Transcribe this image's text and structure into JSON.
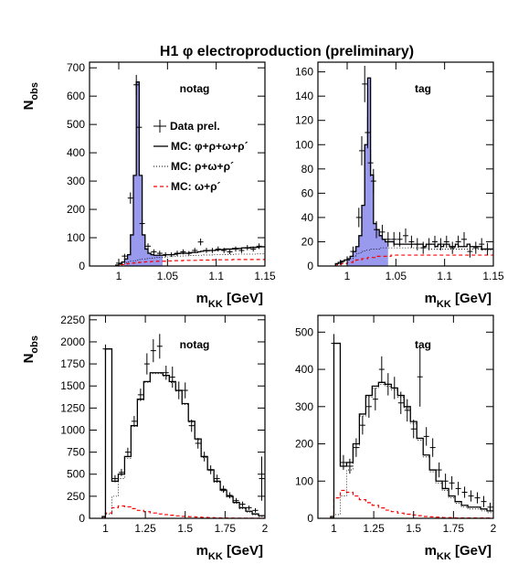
{
  "figure": {
    "title": "H1 φ electroproduction (preliminary)",
    "legend": [
      {
        "label": "Data prel.",
        "style": "data"
      },
      {
        "label": "MC: φ+ρ+ω+ρ´",
        "style": "solid"
      },
      {
        "label": "MC: ρ+ω+ρ´",
        "style": "dotted"
      },
      {
        "label": "MC: ω+ρ´",
        "style": "dashed"
      }
    ],
    "colors": {
      "fill": "#9999ee",
      "dashed": "#ff0000",
      "line": "#000000"
    }
  },
  "chart_data": [
    {
      "type": "histogram",
      "panel_label": "notag",
      "xlabel_main": "m",
      "xlabel_sub": "KK",
      "xlabel_unit": " [GeV]",
      "ylabel_main": "N",
      "ylabel_sub": "obs",
      "xlim": [
        0.97,
        1.15
      ],
      "ylim": [
        0,
        720
      ],
      "xticks": [
        1,
        1.05,
        1.1,
        1.15
      ],
      "xtick_labels": [
        "1",
        "1.05",
        "1.1",
        "1.15"
      ],
      "yticks": [
        0,
        100,
        200,
        300,
        400,
        500,
        600,
        700
      ],
      "ytick_labels": [
        "0",
        "100",
        "200",
        "300",
        "400",
        "500",
        "600",
        "700"
      ],
      "bin_edges": [
        0.997,
        1.0,
        1.003,
        1.006,
        1.009,
        1.012,
        1.015,
        1.018,
        1.021,
        1.024,
        1.027,
        1.03,
        1.033,
        1.036,
        1.039,
        1.042,
        1.045,
        1.048,
        1.051,
        1.054,
        1.057,
        1.06,
        1.063,
        1.066,
        1.069,
        1.072,
        1.075,
        1.078,
        1.081,
        1.084,
        1.087,
        1.09,
        1.093,
        1.096,
        1.099,
        1.102,
        1.105,
        1.108,
        1.111,
        1.114,
        1.117,
        1.12,
        1.123,
        1.126,
        1.129,
        1.132,
        1.135,
        1.138,
        1.141,
        1.144,
        1.147,
        1.15
      ],
      "mc_total": [
        3,
        8,
        14,
        25,
        40,
        110,
        320,
        650,
        320,
        110,
        60,
        45,
        40,
        38,
        38,
        38,
        38,
        40,
        40,
        40,
        42,
        44,
        45,
        45,
        45,
        47,
        48,
        48,
        50,
        52,
        54,
        54,
        55,
        55,
        56,
        58,
        58,
        60,
        60,
        60,
        62,
        62,
        62,
        64,
        64,
        64,
        66,
        66,
        66,
        68,
        68
      ],
      "mc_bkg": [
        2,
        5,
        8,
        12,
        15,
        17,
        19,
        21,
        23,
        25,
        26,
        27,
        28,
        29,
        30,
        31,
        31,
        32,
        33,
        33,
        34,
        35,
        35,
        36,
        36,
        37,
        37,
        38,
        38,
        38,
        39,
        39,
        39,
        40,
        40,
        40,
        40,
        41,
        41,
        41,
        41,
        42,
        42,
        42,
        42,
        42,
        42,
        42,
        43,
        43,
        43
      ],
      "mc_dashed": [
        1,
        3,
        5,
        7,
        9,
        10,
        11,
        12,
        13,
        14,
        15,
        15,
        16,
        16,
        17,
        17,
        17,
        18,
        18,
        18,
        19,
        19,
        19,
        20,
        20,
        20,
        20,
        20,
        21,
        21,
        21,
        21,
        21,
        22,
        22,
        22,
        22,
        22,
        22,
        22,
        23,
        23,
        23,
        23,
        23,
        23,
        23,
        23,
        23,
        23,
        23
      ],
      "fill_range": [
        1.006,
        1.045
      ],
      "data_x": [
        1.0,
        1.006,
        1.012,
        1.018,
        1.021,
        1.024,
        1.03,
        1.036,
        1.042,
        1.048,
        1.054,
        1.06,
        1.066,
        1.072,
        1.078,
        1.084,
        1.09,
        1.096,
        1.102,
        1.108,
        1.114,
        1.12,
        1.126,
        1.132,
        1.138,
        1.144
      ],
      "data_y": [
        10,
        35,
        240,
        640,
        490,
        150,
        70,
        50,
        45,
        40,
        40,
        45,
        50,
        45,
        55,
        85,
        55,
        55,
        60,
        55,
        50,
        60,
        55,
        65,
        60,
        70
      ],
      "data_err": [
        5,
        8,
        20,
        35,
        30,
        15,
        10,
        9,
        9,
        8,
        8,
        9,
        9,
        8,
        9,
        12,
        9,
        9,
        9,
        9,
        8,
        9,
        9,
        9,
        9,
        10
      ]
    },
    {
      "type": "histogram",
      "panel_label": "tag",
      "xlabel_main": "m",
      "xlabel_sub": "KK",
      "xlabel_unit": " [GeV]",
      "ylabel_main": "",
      "ylabel_sub": "",
      "xlim": [
        0.97,
        1.15
      ],
      "ylim": [
        0,
        168
      ],
      "xticks": [
        1,
        1.05,
        1.1,
        1.15
      ],
      "xtick_labels": [
        "1",
        "1.05",
        "1.1",
        "1.15"
      ],
      "yticks": [
        0,
        20,
        40,
        60,
        80,
        100,
        120,
        140,
        160
      ],
      "ytick_labels": [
        "0",
        "20",
        "40",
        "60",
        "80",
        "100",
        "120",
        "140",
        "160"
      ],
      "bin_edges": [
        0.988,
        0.991,
        0.994,
        0.997,
        1.0,
        1.003,
        1.006,
        1.009,
        1.012,
        1.015,
        1.018,
        1.021,
        1.024,
        1.027,
        1.03,
        1.033,
        1.036,
        1.039,
        1.042,
        1.045,
        1.048,
        1.051,
        1.054,
        1.057,
        1.06,
        1.063,
        1.066,
        1.069,
        1.072,
        1.075,
        1.078,
        1.081,
        1.084,
        1.087,
        1.09,
        1.093,
        1.096,
        1.099,
        1.102,
        1.105,
        1.108,
        1.111,
        1.114,
        1.117,
        1.12,
        1.123,
        1.126,
        1.129,
        1.132,
        1.135,
        1.138,
        1.141,
        1.144,
        1.147,
        1.15
      ],
      "mc_total": [
        2,
        3,
        4,
        5,
        6,
        8,
        12,
        16,
        25,
        50,
        100,
        155,
        75,
        35,
        30,
        25,
        22,
        20,
        20,
        20,
        18,
        18,
        18,
        18,
        18,
        18,
        18,
        18,
        18,
        18,
        16,
        18,
        18,
        18,
        16,
        18,
        16,
        18,
        18,
        16,
        16,
        18,
        16,
        16,
        16,
        18,
        16,
        16,
        16,
        16,
        14,
        14,
        14,
        14
      ],
      "mc_bkg": [
        1,
        2,
        3,
        4,
        5,
        6,
        8,
        10,
        11,
        12,
        13,
        13,
        14,
        14,
        14,
        15,
        15,
        15,
        15,
        15,
        15,
        15,
        15,
        15,
        15,
        15,
        15,
        15,
        15,
        15,
        15,
        15,
        14,
        14,
        14,
        14,
        14,
        14,
        14,
        14,
        14,
        14,
        14,
        14,
        14,
        14,
        14,
        14,
        14,
        14,
        13,
        13,
        13,
        13
      ],
      "mc_dashed": [
        1,
        1,
        2,
        2,
        3,
        3,
        4,
        5,
        5,
        6,
        6,
        7,
        7,
        7,
        8,
        8,
        8,
        8,
        8,
        9,
        9,
        9,
        9,
        9,
        9,
        9,
        9,
        9,
        9,
        9,
        9,
        9,
        9,
        9,
        9,
        9,
        9,
        9,
        9,
        9,
        9,
        9,
        9,
        9,
        9,
        9,
        9,
        9,
        9,
        9,
        9,
        9,
        9,
        9
      ],
      "fill_range": [
        1.0,
        1.042
      ],
      "data_x": [
        0.993,
        1.0,
        1.006,
        1.012,
        1.015,
        1.018,
        1.021,
        1.024,
        1.027,
        1.03,
        1.036,
        1.042,
        1.048,
        1.054,
        1.06,
        1.066,
        1.072,
        1.078,
        1.084,
        1.09,
        1.096,
        1.102,
        1.108,
        1.114,
        1.12,
        1.126,
        1.132,
        1.138,
        1.144
      ],
      "data_y": [
        3,
        5,
        12,
        40,
        95,
        150,
        110,
        85,
        70,
        30,
        28,
        22,
        22,
        22,
        25,
        20,
        18,
        15,
        18,
        20,
        18,
        20,
        15,
        20,
        22,
        12,
        15,
        18,
        14
      ],
      "data_err": [
        2,
        3,
        4,
        8,
        12,
        15,
        13,
        11,
        10,
        7,
        6,
        6,
        6,
        6,
        6,
        5,
        5,
        5,
        5,
        5,
        5,
        5,
        5,
        5,
        6,
        5,
        5,
        5,
        5
      ]
    },
    {
      "type": "histogram",
      "panel_label": "notag",
      "xlabel_main": "m",
      "xlabel_sub": "KK",
      "xlabel_unit": " [GeV]",
      "ylabel_main": "N",
      "ylabel_sub": "obs",
      "xlim": [
        0.9,
        2
      ],
      "ylim": [
        0,
        2300
      ],
      "xticks": [
        1,
        1.25,
        1.5,
        1.75,
        2
      ],
      "xtick_labels": [
        "1",
        "1.25",
        "1.5",
        "1.75",
        "2"
      ],
      "yticks": [
        0,
        250,
        500,
        750,
        1000,
        1250,
        1500,
        1750,
        2000,
        2250
      ],
      "ytick_labels": [
        "0",
        "250",
        "500",
        "750",
        "1000",
        "1250",
        "1500",
        "1750",
        "2000",
        "2250"
      ],
      "bin_edges": [
        0.98,
        1.0,
        1.04,
        1.08,
        1.12,
        1.16,
        1.2,
        1.24,
        1.28,
        1.32,
        1.36,
        1.4,
        1.44,
        1.48,
        1.52,
        1.56,
        1.6,
        1.64,
        1.68,
        1.72,
        1.76,
        1.8,
        1.84,
        1.88,
        1.92,
        1.96,
        2.0
      ],
      "mc_total": [
        20,
        1920,
        420,
        500,
        700,
        1050,
        1350,
        1550,
        1650,
        1650,
        1620,
        1550,
        1450,
        1300,
        1100,
        900,
        700,
        550,
        420,
        320,
        250,
        180,
        120,
        80,
        50,
        30
      ],
      "mc_bkg": [
        10,
        50,
        250,
        450,
        680,
        1040,
        1340,
        1540,
        1640,
        1640,
        1610,
        1540,
        1440,
        1290,
        1090,
        890,
        690,
        540,
        410,
        310,
        240,
        170,
        110,
        70,
        40,
        20
      ],
      "mc_dashed": [
        2,
        60,
        120,
        140,
        130,
        110,
        90,
        75,
        60,
        50,
        42,
        35,
        28,
        22,
        18,
        14,
        10,
        8,
        6,
        4,
        3,
        2,
        2,
        1,
        1,
        1
      ],
      "data_x": [
        1.0,
        1.06,
        1.1,
        1.14,
        1.18,
        1.22,
        1.26,
        1.3,
        1.34,
        1.38,
        1.42,
        1.46,
        1.5,
        1.54,
        1.58,
        1.62,
        1.66,
        1.7,
        1.74,
        1.78,
        1.82,
        1.86,
        1.9,
        1.94,
        1.98
      ],
      "data_y": [
        1920,
        450,
        520,
        750,
        1100,
        1400,
        1750,
        1900,
        1950,
        1650,
        1600,
        1450,
        1450,
        1050,
        850,
        700,
        550,
        450,
        330,
        260,
        200,
        160,
        120,
        90,
        450
      ],
      "data_err": [
        50,
        40,
        40,
        50,
        60,
        70,
        120,
        130,
        140,
        80,
        120,
        100,
        90,
        70,
        60,
        55,
        50,
        45,
        40,
        35,
        30,
        30,
        25,
        25,
        250
      ]
    },
    {
      "type": "histogram",
      "panel_label": "tag",
      "xlabel_main": "m",
      "xlabel_sub": "KK",
      "xlabel_unit": " [GeV]",
      "ylabel_main": "",
      "ylabel_sub": "",
      "xlim": [
        0.9,
        2
      ],
      "ylim": [
        0,
        545
      ],
      "xticks": [
        1,
        1.25,
        1.5,
        1.75,
        2
      ],
      "xtick_labels": [
        "1",
        "1.25",
        "1.5",
        "1.75",
        "2"
      ],
      "yticks": [
        0,
        100,
        200,
        300,
        400,
        500
      ],
      "ytick_labels": [
        "0",
        "100",
        "200",
        "300",
        "400",
        "500"
      ],
      "bin_edges": [
        0.98,
        1.0,
        1.04,
        1.08,
        1.12,
        1.16,
        1.2,
        1.24,
        1.28,
        1.32,
        1.36,
        1.4,
        1.44,
        1.48,
        1.52,
        1.56,
        1.6,
        1.64,
        1.68,
        1.72,
        1.76,
        1.8,
        1.84,
        1.88,
        1.92,
        1.96,
        2.0
      ],
      "mc_total": [
        5,
        470,
        140,
        150,
        200,
        280,
        330,
        355,
        365,
        360,
        350,
        330,
        300,
        260,
        215,
        170,
        130,
        100,
        80,
        60,
        45,
        35,
        30,
        30,
        25,
        20
      ],
      "mc_bkg": [
        2,
        10,
        60,
        130,
        190,
        275,
        325,
        350,
        360,
        355,
        345,
        325,
        295,
        255,
        210,
        165,
        125,
        95,
        75,
        55,
        40,
        30,
        25,
        25,
        20,
        15
      ],
      "mc_dashed": [
        1,
        55,
        75,
        70,
        60,
        50,
        42,
        35,
        28,
        22,
        18,
        14,
        11,
        9,
        7,
        5,
        4,
        3,
        2,
        2,
        1,
        1,
        1,
        1,
        1,
        1
      ],
      "data_x": [
        1.0,
        1.06,
        1.1,
        1.14,
        1.18,
        1.22,
        1.26,
        1.3,
        1.34,
        1.38,
        1.42,
        1.46,
        1.5,
        1.54,
        1.58,
        1.62,
        1.66,
        1.7,
        1.74,
        1.78,
        1.82,
        1.86,
        1.9,
        1.94,
        1.98
      ],
      "data_y": [
        470,
        150,
        140,
        190,
        250,
        300,
        320,
        400,
        360,
        350,
        310,
        290,
        240,
        380,
        220,
        190,
        130,
        100,
        95,
        80,
        70,
        60,
        55,
        45,
        30
      ],
      "data_err": [
        25,
        20,
        20,
        25,
        25,
        30,
        30,
        35,
        30,
        30,
        30,
        30,
        25,
        80,
        25,
        25,
        20,
        20,
        18,
        18,
        15,
        15,
        15,
        15,
        12
      ]
    }
  ]
}
